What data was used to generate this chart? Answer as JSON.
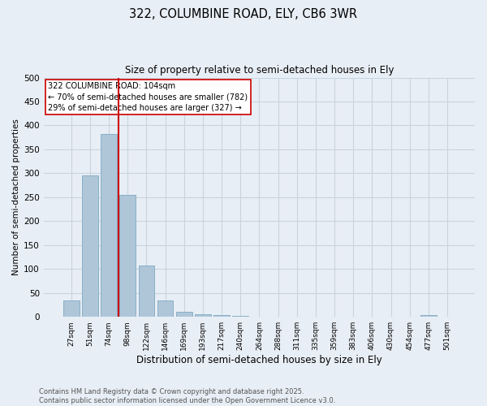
{
  "title1": "322, COLUMBINE ROAD, ELY, CB6 3WR",
  "title2": "Size of property relative to semi-detached houses in Ely",
  "xlabel": "Distribution of semi-detached houses by size in Ely",
  "ylabel": "Number of semi-detached properties",
  "categories": [
    "27sqm",
    "51sqm",
    "74sqm",
    "98sqm",
    "122sqm",
    "146sqm",
    "169sqm",
    "193sqm",
    "217sqm",
    "240sqm",
    "264sqm",
    "288sqm",
    "311sqm",
    "335sqm",
    "359sqm",
    "383sqm",
    "406sqm",
    "430sqm",
    "454sqm",
    "477sqm",
    "501sqm"
  ],
  "values": [
    35,
    295,
    383,
    255,
    108,
    35,
    10,
    6,
    4,
    2,
    0,
    0,
    0,
    0,
    0,
    0,
    0,
    0,
    0,
    3,
    0
  ],
  "bar_color": "#aec6d8",
  "bar_edge_color": "#8aafc8",
  "vline_x_index": 2.5,
  "vline_color": "#cc0000",
  "annotation_title": "322 COLUMBINE ROAD: 104sqm",
  "annotation_line1": "← 70% of semi-detached houses are smaller (782)",
  "annotation_line2": "29% of semi-detached houses are larger (327) →",
  "annotation_box_color": "#ffffff",
  "annotation_box_edge": "#cc0000",
  "footer1": "Contains HM Land Registry data © Crown copyright and database right 2025.",
  "footer2": "Contains public sector information licensed under the Open Government Licence v3.0.",
  "ylim": [
    0,
    500
  ],
  "yticks": [
    0,
    50,
    100,
    150,
    200,
    250,
    300,
    350,
    400,
    450,
    500
  ],
  "background_color": "#e8eef5",
  "grid_color": "#c8d4e0"
}
